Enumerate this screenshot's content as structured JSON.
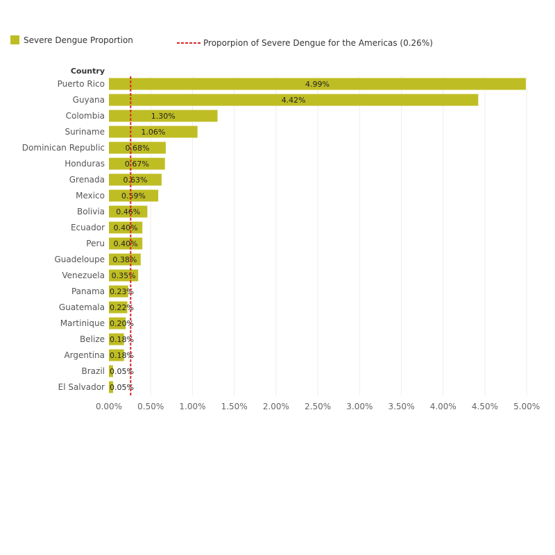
{
  "legend": {
    "bar_label": "Severe Dengue Proportion",
    "line_label": "Proporpion of Severe Dengue for the Americas (0.26%)"
  },
  "colors": {
    "bar": "#bfbd24",
    "reference_line": "#d62728",
    "gridline": "#eeeeee"
  },
  "chart_data": {
    "type": "bar",
    "orientation": "horizontal",
    "category_header": "Country",
    "categories": [
      "Puerto Rico",
      "Guyana",
      "Colombia",
      "Suriname",
      "Dominican Republic",
      "Honduras",
      "Grenada",
      "Mexico",
      "Bolivia",
      "Ecuador",
      "Peru",
      "Guadeloupe",
      "Venezuela",
      "Panama",
      "Guatemala",
      "Martinique",
      "Belize",
      "Argentina",
      "Brazil",
      "El Salvador"
    ],
    "values": [
      4.99,
      4.42,
      1.3,
      1.06,
      0.68,
      0.67,
      0.63,
      0.59,
      0.46,
      0.4,
      0.4,
      0.38,
      0.35,
      0.23,
      0.22,
      0.2,
      0.18,
      0.18,
      0.05,
      0.05
    ],
    "value_labels": [
      "4.99%",
      "4.42%",
      "1.30%",
      "1.06%",
      "0.68%",
      "0.67%",
      "0.63%",
      "0.59%",
      "0.46%",
      "0.40%",
      "0.40%",
      "0.38%",
      "0.35%",
      "0.23%",
      "0.22%",
      "0.20%",
      "0.18%",
      "0.18%",
      "0.05%",
      "0.05%"
    ],
    "xlim": [
      0,
      5.25
    ],
    "x_ticks": [
      0,
      0.5,
      1,
      1.5,
      2,
      2.5,
      3,
      3.5,
      4,
      4.5,
      5
    ],
    "x_tick_labels": [
      "0.00%",
      "0.50%",
      "1.00%",
      "1.50%",
      "2.00%",
      "2.50%",
      "3.00%",
      "3.50%",
      "4.00%",
      "4.50%",
      "5.00%"
    ],
    "reference_line": {
      "value": 0.26
    },
    "grid": true,
    "legend_position": "top-left"
  }
}
